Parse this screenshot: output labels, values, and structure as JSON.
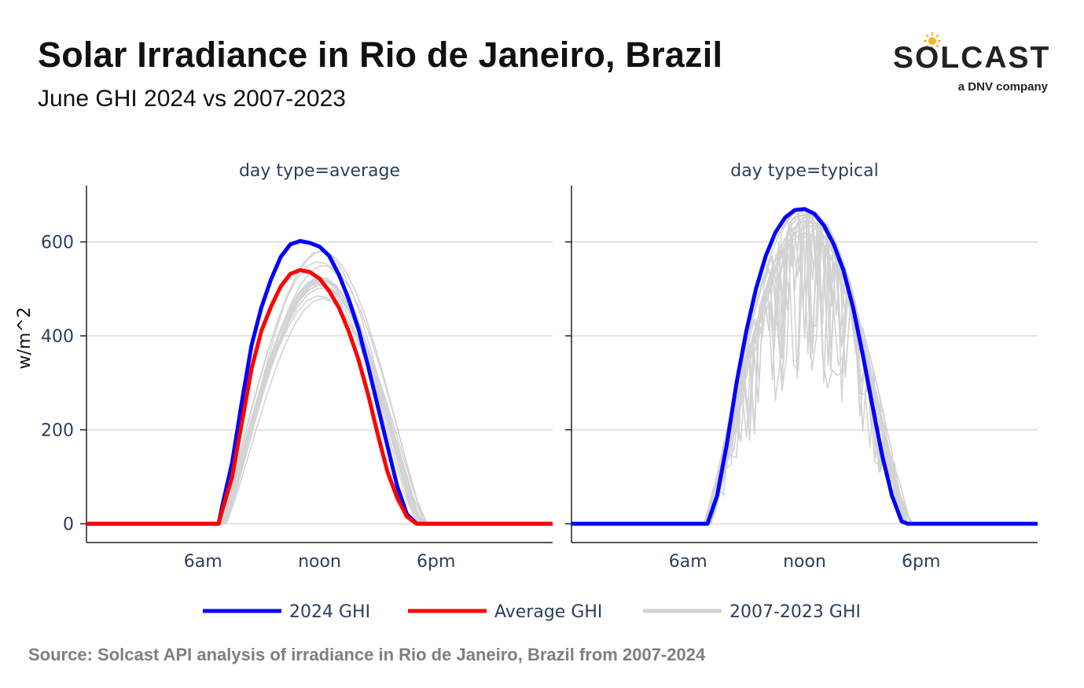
{
  "header": {
    "title": "Solar Irradiance in Rio de Janeiro, Brazil",
    "subtitle": "June GHI 2024 vs 2007-2023"
  },
  "logo": {
    "wordmark": "SOLCAST",
    "tagline": "a DNV company"
  },
  "footer": {
    "source": "Source: Solcast API analysis of irradiance in Rio de Janeiro, Brazil from 2007-2024"
  },
  "colors": {
    "ghi_2024": "#0000ff",
    "average_ghi": "#ff0000",
    "historical_ghi": "#d3d3d3",
    "axis_text": "#2a3f5f",
    "gridline": "#d9d9d9"
  },
  "chart_data": {
    "type": "line",
    "ylabel": "w/m^2",
    "ylim": [
      -40,
      720
    ],
    "xlim": [
      0,
      24
    ],
    "yticks": [
      0,
      200,
      400,
      600
    ],
    "ytick_labels": [
      "0",
      "200",
      "400",
      "600"
    ],
    "xticks": [
      6,
      12,
      18
    ],
    "xtick_labels": [
      "6am",
      "noon",
      "6pm"
    ],
    "grid": true,
    "legend_position": "bottom",
    "legend": [
      {
        "name": "2024 GHI",
        "color": "#0000ff"
      },
      {
        "name": "Average GHI",
        "color": "#ff0000"
      },
      {
        "name": "2007-2023 GHI",
        "color": "#d3d3d3"
      }
    ],
    "panels": [
      {
        "title": "day type=average",
        "series": [
          {
            "name": "2024 GHI",
            "x": [
              0,
              5,
              6.8,
              7.0,
              7.5,
              8.0,
              8.5,
              9.0,
              9.5,
              10.0,
              10.5,
              11.0,
              11.5,
              12.0,
              12.5,
              13.0,
              13.5,
              14.0,
              14.5,
              15.0,
              15.5,
              16.0,
              16.5,
              17.0,
              17.5,
              18.0,
              24
            ],
            "y": [
              0,
              0,
              0,
              40,
              130,
              260,
              380,
              460,
              520,
              568,
              595,
              602,
              598,
              590,
              570,
              530,
              478,
              415,
              335,
              250,
              165,
              80,
              20,
              0,
              0,
              0,
              0
            ]
          },
          {
            "name": "Average GHI",
            "x": [
              0,
              5,
              6.8,
              7.0,
              7.5,
              8.0,
              8.5,
              9.0,
              9.5,
              10.0,
              10.5,
              11.0,
              11.5,
              12.0,
              12.5,
              13.0,
              13.5,
              14.0,
              14.5,
              15.0,
              15.5,
              16.0,
              16.5,
              17.0,
              17.5,
              18.0,
              24
            ],
            "y": [
              0,
              0,
              0,
              30,
              100,
              215,
              330,
              410,
              462,
              505,
              532,
              540,
              536,
              522,
              495,
              460,
              410,
              350,
              275,
              190,
              110,
              55,
              15,
              0,
              0,
              0,
              0
            ]
          }
        ]
      },
      {
        "title": "day type=typical",
        "series": [
          {
            "name": "2024 GHI",
            "x": [
              0,
              5.0,
              6.0,
              7.0,
              7.5,
              8.0,
              8.5,
              9.0,
              9.5,
              10.0,
              10.5,
              11.0,
              11.5,
              12.0,
              12.5,
              13.0,
              13.5,
              14.0,
              14.5,
              15.0,
              15.5,
              16.0,
              16.5,
              17.0,
              17.3,
              17.5,
              24
            ],
            "y": [
              0,
              0,
              0,
              0,
              60,
              170,
              300,
              410,
              500,
              570,
              620,
              652,
              668,
              670,
              660,
              635,
              595,
              540,
              460,
              360,
              250,
              145,
              60,
              5,
              0,
              0,
              0
            ]
          }
        ]
      }
    ]
  }
}
